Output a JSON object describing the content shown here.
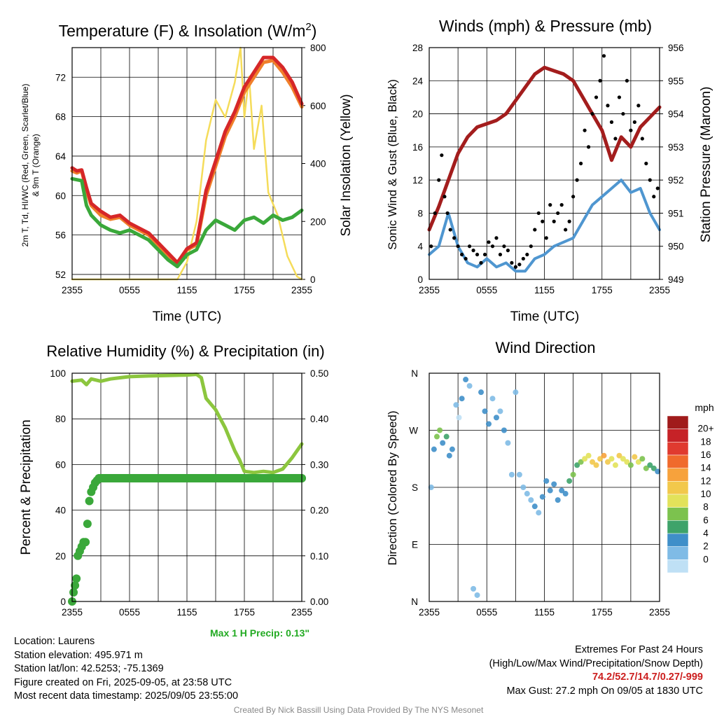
{
  "panels": {
    "temperature": {
      "title": "Temperature (F) & Insolation (W/m²)",
      "title_main": "Temperature (F) & Insolation (W/m",
      "title_sup": "2",
      "title_close": ")",
      "ylabel_left_line1": "2m T, Td, HI/WC (Red, Green, Scarlet/Blue)",
      "ylabel_left_line2": "& 9m T (Orange)",
      "ylabel_right": "Solar Insolation (Yellow)",
      "xlabel": "Time (UTC)"
    },
    "winds": {
      "title": "Winds (mph) & Pressure (mb)",
      "ylabel_left": "Sonic Wind & Gust (Blue, Black)",
      "ylabel_right": "Station Pressure (Maroon)",
      "xlabel": "Time (UTC)"
    },
    "humidity": {
      "title": "Relative Humidity (%) & Precipitation (in)",
      "ylabel_left": "Percent & Precipitation",
      "max_precip_note": "Max 1 H Precip: 0.13\""
    },
    "direction": {
      "title": "Wind Direction",
      "ylabel_left": "Direction (Colored By Speed)",
      "colorbar_title": "mph",
      "colorbar_labels": [
        "20+",
        "18",
        "16",
        "14",
        "12",
        "10",
        "8",
        "6",
        "4",
        "2",
        "0"
      ],
      "colorbar_colors": [
        "#a01b1b",
        "#c62227",
        "#e03a2f",
        "#f06a2c",
        "#f7a23c",
        "#f2c84b",
        "#e2e25a",
        "#7cc24e",
        "#3ea36a",
        "#3f8fc9",
        "#7fbbe6",
        "#bfe0f5"
      ]
    }
  },
  "info": {
    "location": "Location: Laurens",
    "elevation": "Station elevation: 495.971 m",
    "latlon": "Station lat/lon: 42.5253; -75.1369",
    "created": "Figure created on Fri, 2025-09-05, at 23:58 UTC",
    "recent": "Most recent data timestamp: 2025/09/05 23:55:00"
  },
  "extremes": {
    "title": "Extremes For Past 24 Hours",
    "subtitle": "(High/Low/Max Wind/Precipitation/Snow Depth)",
    "values": "74.2/52.7/14.7/0.27/-999",
    "max_gust": "Max Gust: 27.2 mph On 09/05 at 1830 UTC"
  },
  "credit": "Created By Nick Bassill Using Data Provided By The NYS Mesonet",
  "colors": {
    "temp_red": "#d62728",
    "temp_orange": "#f07f2a",
    "dewpoint_green": "#3aa83a",
    "insolation_yellow": "#f5dc5a",
    "wind_blue": "#4f96d0",
    "gust_black": "#000000",
    "pressure_maroon": "#a31d1d",
    "rh_lightgreen": "#8cc63e",
    "precip_green": "#3aa83a"
  },
  "chart_data": [
    {
      "id": "temperature",
      "type": "line",
      "x_ticks": [
        "2355",
        "0555",
        "1155",
        "1755",
        "2355"
      ],
      "x_hours": [
        0,
        6,
        12,
        18,
        24
      ],
      "xlim": [
        0,
        24
      ],
      "y_left_ticks": [
        52,
        56,
        60,
        64,
        68,
        72
      ],
      "ylim_left": [
        51.5,
        75
      ],
      "y_right_ticks": [
        0,
        200,
        400,
        600,
        800
      ],
      "ylim_right": [
        0,
        800
      ],
      "grid": true,
      "series": [
        {
          "color_key": "insolation_yellow",
          "axis": "right",
          "x": [
            0,
            11,
            12,
            13,
            14,
            15,
            16,
            17,
            17.6,
            18,
            18.5,
            19,
            19.8,
            20.5,
            21.5,
            22.5,
            23.5,
            24
          ],
          "y": [
            0,
            0,
            60,
            200,
            480,
            620,
            560,
            680,
            800,
            560,
            700,
            450,
            600,
            300,
            220,
            80,
            10,
            0
          ]
        },
        {
          "color_key": "temp_orange",
          "axis": "left",
          "x": [
            0,
            0.5,
            1,
            1.5,
            2,
            3,
            4,
            5,
            6,
            7,
            8,
            9,
            10,
            11,
            12,
            13,
            14,
            15,
            16,
            17,
            18,
            19,
            20,
            21,
            22,
            23,
            24
          ],
          "y": [
            62.5,
            62.3,
            62.5,
            60.5,
            59,
            58,
            57.6,
            57.8,
            57,
            56.5,
            56,
            55,
            54,
            53,
            54.5,
            55,
            60,
            63,
            66,
            68,
            70.5,
            72,
            73.5,
            73.7,
            72.5,
            71,
            69
          ]
        },
        {
          "color_key": "temp_red",
          "axis": "left",
          "x": [
            0,
            0.5,
            1,
            1.5,
            2,
            3,
            4,
            5,
            6,
            7,
            8,
            9,
            10,
            11,
            12,
            13,
            14,
            15,
            16,
            17,
            18,
            19,
            20,
            21,
            22,
            23,
            24
          ],
          "y": [
            62.8,
            62.5,
            62.6,
            60.8,
            59.2,
            58.4,
            57.8,
            58,
            57.2,
            56.7,
            56.2,
            55.2,
            54.2,
            53.2,
            54.6,
            55.2,
            60.5,
            63.5,
            66.5,
            68.5,
            71,
            72.5,
            74,
            74,
            73,
            71.5,
            69.3
          ]
        },
        {
          "color_key": "dewpoint_green",
          "axis": "left",
          "x": [
            0,
            0.5,
            1,
            1.5,
            2,
            3,
            4,
            5,
            6,
            7,
            8,
            9,
            10,
            11,
            12,
            13,
            14,
            15,
            16,
            17,
            18,
            19,
            20,
            21,
            22,
            23,
            24
          ],
          "y": [
            61.7,
            61.6,
            61.5,
            59,
            58,
            57,
            56.5,
            56.2,
            56.5,
            56,
            55.5,
            54.5,
            53.5,
            52.8,
            54,
            54.5,
            56.5,
            57.5,
            57,
            56.5,
            57.5,
            57.8,
            57.2,
            58,
            57.5,
            57.8,
            58.5
          ]
        }
      ]
    },
    {
      "id": "winds",
      "type": "line",
      "x_ticks": [
        "2355",
        "0555",
        "1155",
        "1755",
        "2355"
      ],
      "x_hours": [
        0,
        6,
        12,
        18,
        24
      ],
      "xlim": [
        0,
        24
      ],
      "y_left_ticks": [
        0,
        4,
        8,
        12,
        16,
        20,
        24,
        28
      ],
      "ylim_left": [
        0,
        28
      ],
      "y_right_ticks": [
        949,
        950,
        951,
        952,
        953,
        954,
        955,
        956
      ],
      "ylim_right": [
        949,
        956
      ],
      "grid": true,
      "series": [
        {
          "color_key": "wind_blue",
          "axis": "left",
          "x": [
            0,
            1,
            2,
            3,
            4,
            5,
            6,
            7,
            8,
            9,
            10,
            11,
            12,
            13,
            14,
            15,
            16,
            17,
            18,
            19,
            20,
            21,
            22,
            23,
            24
          ],
          "y": [
            3,
            4,
            8,
            4,
            2,
            1.5,
            2.5,
            1.5,
            2,
            1,
            1,
            2.5,
            3,
            4,
            4.5,
            5,
            7,
            9,
            10,
            11,
            12,
            10.5,
            11,
            8,
            6
          ]
        },
        {
          "color_key": "pressure_maroon",
          "axis": "right",
          "x": [
            0,
            1,
            2,
            3,
            4,
            5,
            6,
            7,
            8,
            9,
            10,
            11,
            12,
            13,
            14,
            15,
            16,
            17,
            18,
            19,
            20,
            21,
            22,
            23,
            24
          ],
          "y": [
            950.5,
            951.2,
            952,
            952.8,
            953.3,
            953.6,
            953.7,
            953.8,
            954,
            954.4,
            954.8,
            955.2,
            955.4,
            955.3,
            955.2,
            955,
            954.5,
            954,
            953.5,
            952.6,
            953.3,
            953,
            953.6,
            953.9,
            954.2
          ]
        },
        {
          "color_key": "gust_black",
          "axis": "left",
          "type": "scatter",
          "x": [
            0.2,
            0.6,
            1,
            1.3,
            1.6,
            1.9,
            2.2,
            2.6,
            3,
            3.4,
            3.8,
            4.2,
            4.6,
            5,
            5.4,
            5.8,
            6.2,
            6.6,
            7,
            7.4,
            7.8,
            8.2,
            8.6,
            9,
            9.4,
            9.8,
            10.2,
            10.6,
            11,
            11.4,
            11.8,
            12.2,
            12.6,
            13,
            13.4,
            13.8,
            14.2,
            14.6,
            15,
            15.4,
            15.8,
            16.2,
            16.6,
            17,
            17.4,
            17.8,
            18.2,
            18.6,
            19,
            19.4,
            19.8,
            20.2,
            20.6,
            21,
            21.4,
            21.8,
            22.2,
            22.6,
            23,
            23.4,
            23.8
          ],
          "y": [
            4,
            8,
            12,
            15,
            10,
            8,
            6,
            5,
            4,
            3,
            2.5,
            4,
            3.5,
            3,
            2,
            3,
            4.5,
            4,
            5,
            3,
            4,
            3.5,
            2,
            1.5,
            1.8,
            2.5,
            3,
            4,
            6,
            8,
            7,
            5,
            9,
            7,
            8,
            9,
            6,
            7,
            10,
            12,
            14,
            18,
            16,
            20,
            22,
            24,
            27,
            21,
            19,
            17,
            22,
            20,
            24,
            18,
            19,
            21,
            17,
            14,
            12,
            10,
            11
          ]
        }
      ]
    },
    {
      "id": "humidity",
      "type": "line",
      "x_ticks": [
        "2355",
        "0555",
        "1155",
        "1755",
        "2355"
      ],
      "x_hours": [
        0,
        6,
        12,
        18,
        24
      ],
      "xlim": [
        0,
        24
      ],
      "y_left_ticks": [
        0,
        20,
        40,
        60,
        80,
        100
      ],
      "ylim_left": [
        0,
        100
      ],
      "y_right_ticks": [
        "0.00",
        "0.10",
        "0.20",
        "0.30",
        "0.40",
        "0.50"
      ],
      "ylim_right": [
        0,
        0.5
      ],
      "grid": true,
      "series": [
        {
          "color_key": "rh_lightgreen",
          "axis": "left",
          "x": [
            0,
            1,
            1.5,
            2,
            3,
            4,
            5,
            6,
            8,
            10,
            12,
            13,
            13.5,
            14,
            15,
            16,
            17,
            17.5,
            18,
            19,
            20,
            21,
            22,
            23,
            24
          ],
          "y": [
            96.5,
            97,
            95,
            97.5,
            96.5,
            97.5,
            98,
            98.5,
            98.8,
            99,
            99.2,
            99.5,
            98,
            89,
            84,
            76,
            66,
            62,
            57,
            56.5,
            57,
            56.5,
            58,
            63,
            69
          ]
        },
        {
          "color_key": "precip_green",
          "axis": "right",
          "type": "scatter",
          "x": [
            0,
            0.15,
            0.3,
            0.45,
            0.6,
            0.8,
            1,
            1.2,
            1.4,
            1.6,
            1.8,
            2.0,
            2.2,
            2.4,
            2.6,
            2.8,
            3,
            24
          ],
          "y": [
            0.0,
            0.02,
            0.035,
            0.05,
            0.1,
            0.11,
            0.12,
            0.13,
            0.13,
            0.17,
            0.22,
            0.24,
            0.25,
            0.26,
            0.265,
            0.27,
            0.27,
            0.27
          ]
        }
      ]
    },
    {
      "id": "direction",
      "type": "scatter",
      "x_ticks": [
        "2355",
        "0555",
        "1155",
        "1755",
        "2355"
      ],
      "x_hours": [
        0,
        6,
        12,
        18,
        24
      ],
      "xlim": [
        0,
        24
      ],
      "y_ticks": [
        "N",
        "W",
        "S",
        "E",
        "N"
      ],
      "y_degrees": [
        360,
        270,
        180,
        90,
        0
      ],
      "ylim": [
        0,
        360
      ],
      "grid": true,
      "series": [
        {
          "x": [
            0.2,
            0.5,
            0.8,
            1.1,
            1.4,
            1.8,
            2.1,
            2.4,
            2.8,
            3.1,
            3.4,
            3.8,
            4.2,
            4.6,
            5,
            5.4,
            5.8,
            6.2,
            6.6,
            7,
            7.4,
            7.8,
            8.2,
            8.6,
            9,
            9.4,
            9.8,
            10.2,
            10.6,
            11,
            11.4,
            11.8,
            12.2,
            12.6,
            13,
            13.4,
            13.8,
            14.2,
            14.6,
            15,
            15.4,
            15.8,
            16.2,
            16.6,
            17,
            17.4,
            17.8,
            18.2,
            18.6,
            19,
            19.4,
            19.8,
            20.2,
            20.6,
            21,
            21.4,
            21.8,
            22.2,
            22.6,
            23,
            23.4,
            23.8
          ],
          "y": [
            180,
            240,
            260,
            270,
            250,
            260,
            230,
            240,
            310,
            290,
            320,
            350,
            340,
            20,
            10,
            330,
            300,
            280,
            320,
            290,
            300,
            270,
            250,
            200,
            330,
            200,
            180,
            170,
            160,
            150,
            140,
            165,
            190,
            175,
            185,
            160,
            175,
            170,
            190,
            200,
            215,
            220,
            225,
            230,
            220,
            215,
            225,
            230,
            220,
            225,
            215,
            230,
            225,
            220,
            215,
            228,
            220,
            225,
            210,
            215,
            210,
            205
          ],
          "speed": [
            3,
            4,
            9,
            8,
            4,
            6,
            4,
            5,
            2,
            1,
            4,
            5,
            2,
            2,
            3,
            4,
            4,
            4,
            3,
            4,
            2,
            4,
            2,
            3,
            2,
            2,
            2,
            3,
            2,
            4,
            3,
            4,
            5,
            4,
            5,
            4,
            5,
            4,
            6,
            8,
            7,
            8,
            10,
            11,
            12,
            12,
            13,
            14,
            12,
            11,
            10,
            12,
            11,
            10,
            9,
            12,
            10,
            9,
            8,
            6,
            6,
            5
          ]
        }
      ]
    }
  ]
}
